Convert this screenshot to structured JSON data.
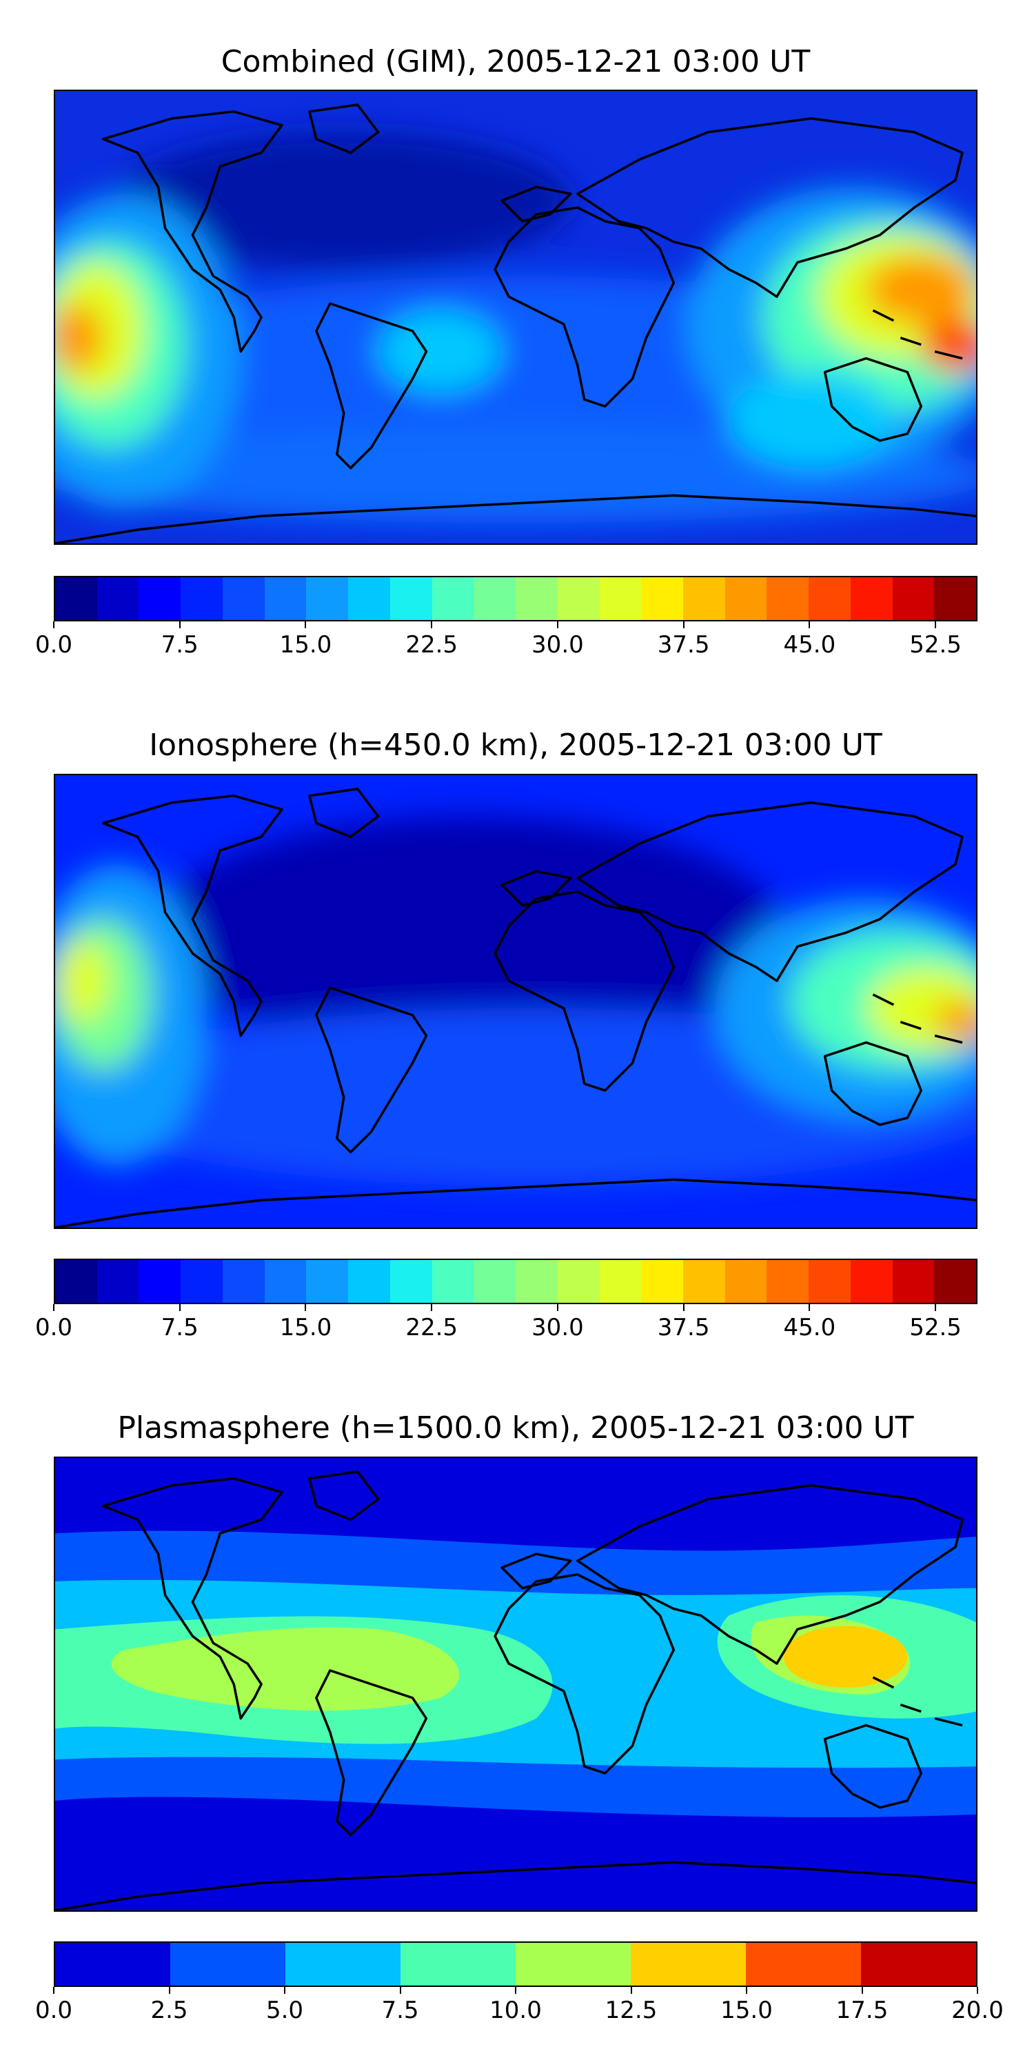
{
  "panels": [
    {
      "title": "Combined (GIM), 2005-12-21 03:00 UT",
      "colorbar": {
        "colors": [
          "#00008f",
          "#0000c8",
          "#0000ff",
          "#0022ff",
          "#0a4bff",
          "#0d74ff",
          "#0d9bff",
          "#00c8ff",
          "#1af0ef",
          "#4cffc0",
          "#74ff98",
          "#98ff74",
          "#c0ff4c",
          "#e0ff24",
          "#ffee00",
          "#ffc000",
          "#ff9900",
          "#ff7000",
          "#ff4800",
          "#ff1800",
          "#d00000",
          "#900000"
        ],
        "tick_labels": [
          "0.0",
          "7.5",
          "15.0",
          "22.5",
          "30.0",
          "37.5",
          "45.0",
          "52.5"
        ],
        "tick_values": [
          0,
          7.5,
          15,
          22.5,
          30,
          37.5,
          45,
          52.5
        ],
        "min": 0,
        "max": 55
      }
    },
    {
      "title": "Ionosphere  (h=450.0 km), 2005-12-21 03:00 UT",
      "colorbar": {
        "colors": [
          "#00008f",
          "#0000c8",
          "#0000ff",
          "#0022ff",
          "#0a4bff",
          "#0d74ff",
          "#0d9bff",
          "#00c8ff",
          "#1af0ef",
          "#4cffc0",
          "#74ff98",
          "#98ff74",
          "#c0ff4c",
          "#e0ff24",
          "#ffee00",
          "#ffc000",
          "#ff9900",
          "#ff7000",
          "#ff4800",
          "#ff1800",
          "#d00000",
          "#900000"
        ],
        "tick_labels": [
          "0.0",
          "7.5",
          "15.0",
          "22.5",
          "30.0",
          "37.5",
          "45.0",
          "52.5"
        ],
        "tick_values": [
          0,
          7.5,
          15,
          22.5,
          30,
          37.5,
          45,
          52.5
        ],
        "min": 0,
        "max": 55
      }
    },
    {
      "title": "Plasmasphere (h=1500.0 km), 2005-12-21 03:00 UT",
      "colorbar": {
        "colors": [
          "#0000dc",
          "#0055ff",
          "#00c0ff",
          "#4cffb0",
          "#a8ff50",
          "#ffd000",
          "#ff5000",
          "#c80000"
        ],
        "tick_labels": [
          "0.0",
          "2.5",
          "5.0",
          "7.5",
          "10.0",
          "12.5",
          "15.0",
          "17.5",
          "20.0"
        ],
        "tick_values": [
          0,
          2.5,
          5,
          7.5,
          10,
          12.5,
          15,
          17.5,
          20
        ],
        "min": 0,
        "max": 20
      }
    }
  ]
}
